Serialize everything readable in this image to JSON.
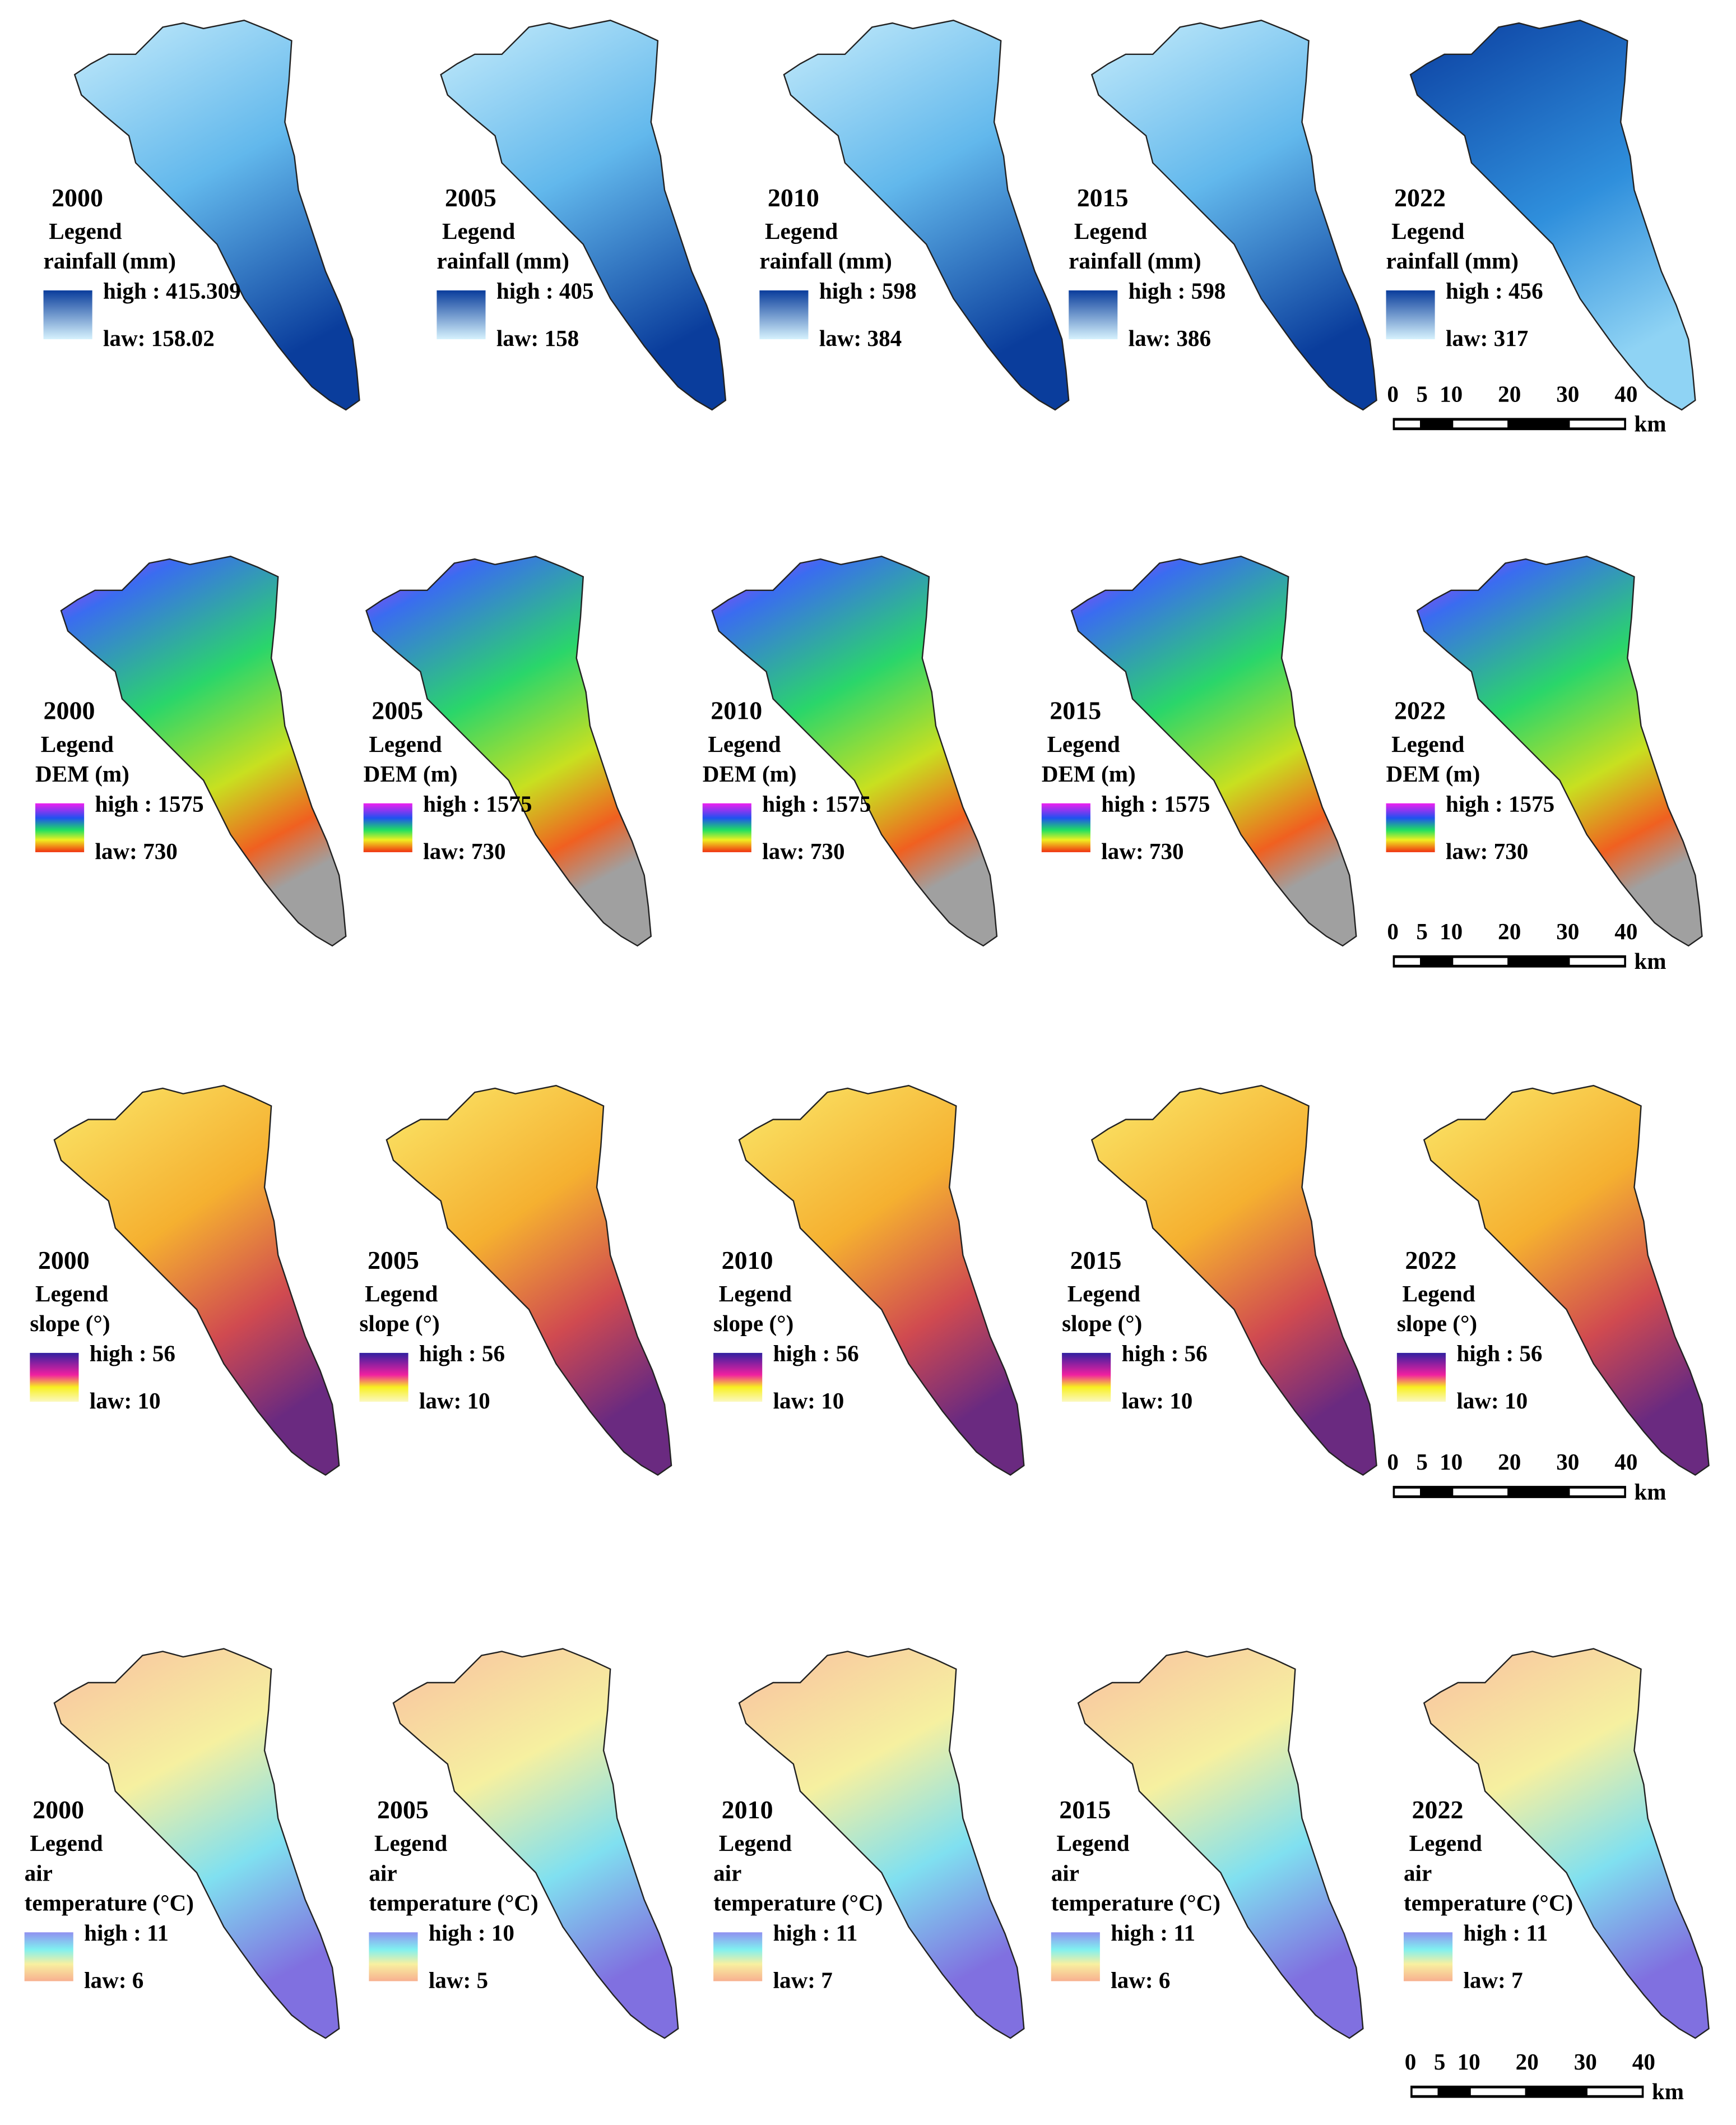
{
  "rows": [
    {
      "panels": [
        {
          "year": "2000",
          "legend": "Legend",
          "label": [
            "rainfall (mm)"
          ],
          "high": "high : 415.309",
          "low": "law: 158.02"
        },
        {
          "year": "2005",
          "legend": "Legend",
          "label": [
            "rainfall (mm)"
          ],
          "high": "high : 405",
          "low": "law: 158"
        },
        {
          "year": "2010",
          "legend": "Legend",
          "label": [
            "rainfall (mm)"
          ],
          "high": "high : 598",
          "low": "law: 384"
        },
        {
          "year": "2015",
          "legend": "Legend",
          "label": [
            "rainfall (mm)"
          ],
          "high": "high : 598",
          "low": "law: 386"
        },
        {
          "year": "2022",
          "legend": "Legend",
          "label": [
            "rainfall (mm)"
          ],
          "high": "high : 456",
          "low": "law: 317"
        }
      ]
    },
    {
      "panels": [
        {
          "year": "2000",
          "legend": "Legend",
          "label": [
            "DEM (m)"
          ],
          "high": "high : 1575",
          "low": "law: 730"
        },
        {
          "year": "2005",
          "legend": "Legend",
          "label": [
            "DEM (m)"
          ],
          "high": "high : 1575",
          "low": "law: 730"
        },
        {
          "year": "2010",
          "legend": "Legend",
          "label": [
            "DEM (m)"
          ],
          "high": "high : 1575",
          "low": "law: 730"
        },
        {
          "year": "2015",
          "legend": "Legend",
          "label": [
            "DEM (m)"
          ],
          "high": "high : 1575",
          "low": "law: 730"
        },
        {
          "year": "2022",
          "legend": "Legend",
          "label": [
            "DEM (m)"
          ],
          "high": "high : 1575",
          "low": "law: 730"
        }
      ]
    },
    {
      "panels": [
        {
          "year": "2000",
          "legend": "Legend",
          "label": [
            "slope (°)"
          ],
          "high": "high : 56",
          "low": "law: 10"
        },
        {
          "year": "2005",
          "legend": "Legend",
          "label": [
            "slope (°)"
          ],
          "high": "high : 56",
          "low": "law: 10"
        },
        {
          "year": "2010",
          "legend": "Legend",
          "label": [
            "slope (°)"
          ],
          "high": "high : 56",
          "low": "law: 10"
        },
        {
          "year": "2015",
          "legend": "Legend",
          "label": [
            "slope (°)"
          ],
          "high": "high : 56",
          "low": "law: 10"
        },
        {
          "year": "2022",
          "legend": "Legend",
          "label": [
            "slope (°)"
          ],
          "high": "high : 56",
          "low": "law: 10"
        }
      ]
    },
    {
      "panels": [
        {
          "year": "2000",
          "legend": "Legend",
          "label": [
            "air",
            "temperature (°C)"
          ],
          "high": "high : 11",
          "low": "law: 6"
        },
        {
          "year": "2005",
          "legend": "Legend",
          "label": [
            "air",
            "temperature (°C)"
          ],
          "high": "high : 10",
          "low": "law: 5"
        },
        {
          "year": "2010",
          "legend": "Legend",
          "label": [
            "air",
            "temperature (°C)"
          ],
          "high": "high : 11",
          "low": "law: 7"
        },
        {
          "year": "2015",
          "legend": "Legend",
          "label": [
            "air",
            "temperature (°C)"
          ],
          "high": "high : 11",
          "low": "law: 6"
        },
        {
          "year": "2022",
          "legend": "Legend",
          "label": [
            "air",
            "temperature (°C)"
          ],
          "high": "high : 11",
          "low": "law: 7"
        }
      ]
    }
  ],
  "scale_bar": {
    "ticks": [
      0,
      5,
      10,
      20,
      30,
      40
    ],
    "unit": "km"
  }
}
